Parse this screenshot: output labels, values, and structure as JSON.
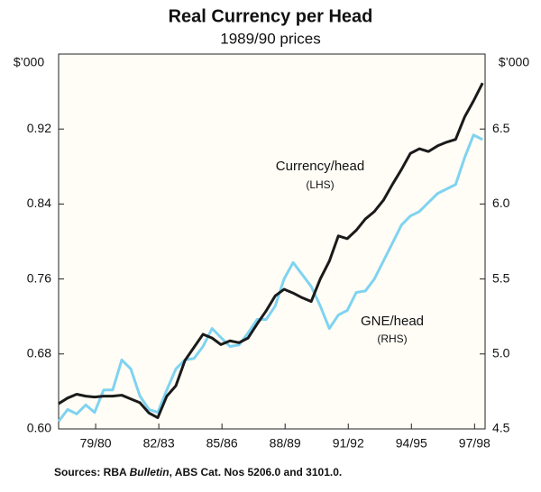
{
  "chart_data": {
    "type": "line",
    "title": "Real Currency per Head",
    "subtitle": "1989/90 prices",
    "y_unit": "$’000",
    "y2_unit": "$’000",
    "x": [
      1978.24,
      1978.67,
      1979.1,
      1979.53,
      1979.95,
      1980.38,
      1980.81,
      1981.24,
      1981.67,
      1982.1,
      1982.53,
      1982.95,
      1983.38,
      1983.81,
      1984.24,
      1984.67,
      1985.1,
      1985.53,
      1985.95,
      1986.38,
      1986.81,
      1987.24,
      1987.67,
      1988.1,
      1988.53,
      1988.95,
      1989.38,
      1989.81,
      1990.24,
      1990.67,
      1991.1,
      1991.53,
      1991.95,
      1992.38,
      1992.81,
      1993.24,
      1993.67,
      1994.1,
      1994.53,
      1994.95,
      1995.38,
      1995.81,
      1996.24,
      1996.67,
      1997.1,
      1997.53,
      1997.95,
      1998.38
    ],
    "series": [
      {
        "name": "Currency/head",
        "note": "(LHS)",
        "color": "#1a1a1a",
        "axis": "y",
        "values": [
          0.627,
          0.633,
          0.637,
          0.635,
          0.634,
          0.635,
          0.635,
          0.636,
          0.632,
          0.628,
          0.617,
          0.612,
          0.635,
          0.646,
          0.673,
          0.687,
          0.701,
          0.697,
          0.69,
          0.694,
          0.692,
          0.697,
          0.712,
          0.726,
          0.742,
          0.749,
          0.745,
          0.74,
          0.736,
          0.76,
          0.779,
          0.806,
          0.803,
          0.812,
          0.824,
          0.832,
          0.844,
          0.861,
          0.877,
          0.894,
          0.899,
          0.896,
          0.902,
          0.906,
          0.909,
          0.933,
          0.95,
          0.969
        ]
      },
      {
        "name": "GNE/head",
        "note": "(RHS)",
        "color": "#7fd3f0",
        "axis": "y2",
        "values": [
          4.55,
          4.63,
          4.6,
          4.66,
          4.61,
          4.76,
          4.76,
          4.96,
          4.9,
          4.72,
          4.63,
          4.61,
          4.76,
          4.9,
          4.96,
          4.97,
          5.05,
          5.17,
          5.11,
          5.05,
          5.06,
          5.14,
          5.23,
          5.23,
          5.32,
          5.5,
          5.61,
          5.53,
          5.45,
          5.32,
          5.17,
          5.26,
          5.29,
          5.41,
          5.42,
          5.5,
          5.62,
          5.74,
          5.86,
          5.92,
          5.95,
          6.01,
          6.07,
          6.1,
          6.13,
          6.31,
          6.46,
          6.43
        ]
      }
    ],
    "xlim": [
      1978.24,
      1998.5
    ],
    "xticks": [
      {
        "value": 1980,
        "label": "79/80"
      },
      {
        "value": 1983,
        "label": "82/83"
      },
      {
        "value": 1986,
        "label": "85/86"
      },
      {
        "value": 1989,
        "label": "88/89"
      },
      {
        "value": 1992,
        "label": "91/92"
      },
      {
        "value": 1995,
        "label": "94/95"
      },
      {
        "value": 1998,
        "label": "97/98"
      }
    ],
    "ylim": [
      0.6,
      1.0
    ],
    "yticks": [
      {
        "value": 0.6,
        "label": "0.60"
      },
      0.68,
      0.76,
      0.84,
      0.92
    ],
    "y2lim": [
      4.5,
      7.0
    ],
    "y2ticks": [
      4.5,
      {
        "value": 5.0,
        "label": "5.0"
      },
      5.5,
      {
        "value": 6.0,
        "label": "6.0"
      },
      6.5
    ],
    "grid": false,
    "source": [
      "Sources: RBA ",
      "Bulletin",
      ", ABS Cat. Nos 5206.0 and 3101.0."
    ]
  }
}
